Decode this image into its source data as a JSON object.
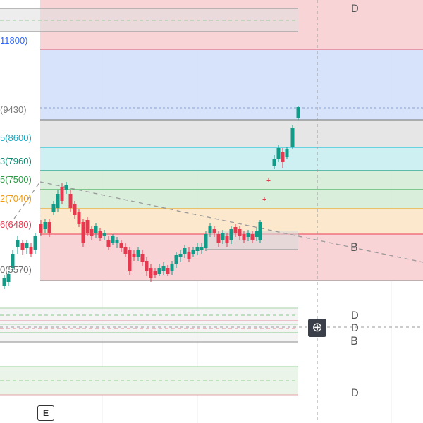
{
  "colors": {
    "bull": "#0f9d8a",
    "bear": "#e8384f",
    "zone_red": "#f8cfd3",
    "zone_blue": "#d3e0fb",
    "zone_gray": "#e3e3e3",
    "zone_cyan": "#c9eef2",
    "zone_green": "#d5ecd7",
    "zone_orange": "#fce6c6"
  },
  "price_levels": [
    {
      "label": "11800)",
      "color": "#2962ff"
    },
    {
      "label": "(9430)",
      "color": "#7a7a7a"
    },
    {
      "label": "5(8600)",
      "color": "#13a8c4"
    },
    {
      "label": "3(7960)",
      "color": "#0d8a73"
    },
    {
      "label": "5(7500)",
      "color": "#2a9a43"
    },
    {
      "label": "2(7040)",
      "color": "#f29a0d"
    },
    {
      "label": "6(6480)",
      "color": "#e8384f"
    },
    {
      "label": "0(5570)",
      "color": "#6b6b6b"
    }
  ],
  "marks": {
    "d": "D",
    "b": "B"
  },
  "buttons": {
    "zoom": "⊕",
    "e_badge": "E"
  }
}
